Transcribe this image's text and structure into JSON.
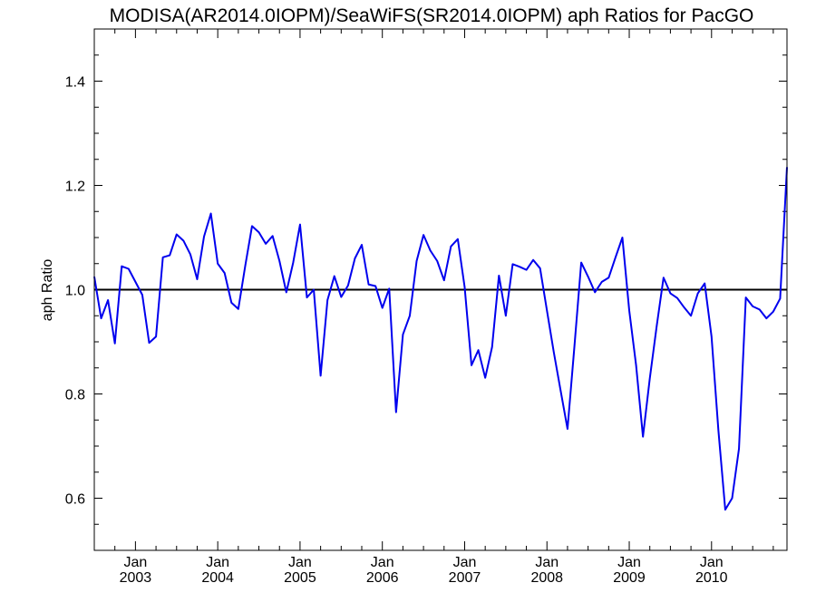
{
  "chart_data": {
    "type": "line",
    "title": "MODISA(AR2014.0IOPM)/SeaWiFS(SR2014.0IOPM)  aph Ratios for PacGO",
    "xlabel": "",
    "ylabel": "aph Ratio",
    "x_start": "2002-07",
    "x_end": "2010-12",
    "ylim": [
      0.5,
      1.5
    ],
    "y_ticks": [
      0.6,
      0.8,
      1.0,
      1.2,
      1.4
    ],
    "y_tick_labels": [
      "0.6",
      "0.8",
      "1.0",
      "1.2",
      "1.4"
    ],
    "x_tick_month_labels": [
      "Jan",
      "Jan",
      "Jan",
      "Jan",
      "Jan",
      "Jan",
      "Jan",
      "Jan"
    ],
    "x_tick_year_labels": [
      "2003",
      "2004",
      "2005",
      "2006",
      "2007",
      "2008",
      "2009",
      "2010"
    ],
    "x_tick_dates": [
      "2003-01",
      "2004-01",
      "2005-01",
      "2006-01",
      "2007-01",
      "2008-01",
      "2009-01",
      "2010-01"
    ],
    "reference_line": 1.0,
    "grid": false,
    "series": [
      {
        "color": "#0000ee",
        "x": [
          "2002-07",
          "2002-08",
          "2002-09",
          "2002-10",
          "2002-11",
          "2002-12",
          "2003-01",
          "2003-02",
          "2003-03",
          "2003-04",
          "2003-05",
          "2003-06",
          "2003-07",
          "2003-08",
          "2003-09",
          "2003-10",
          "2003-11",
          "2003-12",
          "2004-01",
          "2004-02",
          "2004-03",
          "2004-04",
          "2004-05",
          "2004-06",
          "2004-07",
          "2004-08",
          "2004-09",
          "2004-10",
          "2004-11",
          "2004-12",
          "2005-01",
          "2005-02",
          "2005-03",
          "2005-04",
          "2005-05",
          "2005-06",
          "2005-07",
          "2005-08",
          "2005-09",
          "2005-10",
          "2005-11",
          "2005-12",
          "2006-01",
          "2006-02",
          "2006-03",
          "2006-04",
          "2006-05",
          "2006-06",
          "2006-07",
          "2006-08",
          "2006-09",
          "2006-10",
          "2006-11",
          "2006-12",
          "2007-01",
          "2007-02",
          "2007-03",
          "2007-04",
          "2007-05",
          "2007-06",
          "2007-07",
          "2007-08",
          "2007-09",
          "2007-10",
          "2007-11",
          "2007-12",
          "2008-01",
          "2008-02",
          "2008-03",
          "2008-04",
          "2008-05",
          "2008-06",
          "2008-07",
          "2008-08",
          "2008-09",
          "2008-10",
          "2008-11",
          "2008-12",
          "2009-01",
          "2009-02",
          "2009-03",
          "2009-04",
          "2009-05",
          "2009-06",
          "2009-07",
          "2009-08",
          "2009-09",
          "2009-10",
          "2009-11",
          "2009-12",
          "2010-01",
          "2010-02",
          "2010-03",
          "2010-04",
          "2010-05",
          "2010-06",
          "2010-07",
          "2010-08",
          "2010-09",
          "2010-10",
          "2010-11",
          "2010-12"
        ],
        "values": [
          1.025,
          0.945,
          0.98,
          0.897,
          1.045,
          1.04,
          1.015,
          0.99,
          0.898,
          0.91,
          1.062,
          1.066,
          1.106,
          1.094,
          1.068,
          1.02,
          1.102,
          1.146,
          1.05,
          1.032,
          0.975,
          0.963,
          1.045,
          1.122,
          1.11,
          1.088,
          1.103,
          1.055,
          0.995,
          1.052,
          1.125,
          0.985,
          1.0,
          0.835,
          0.98,
          1.026,
          0.986,
          1.008,
          1.06,
          1.086,
          1.01,
          1.007,
          0.965,
          1.002,
          0.765,
          0.914,
          0.95,
          1.055,
          1.105,
          1.075,
          1.055,
          1.018,
          1.083,
          1.097,
          1.005,
          0.855,
          0.884,
          0.831,
          0.89,
          1.027,
          0.95,
          1.049,
          1.044,
          1.038,
          1.057,
          1.041,
          0.96,
          0.88,
          0.806,
          0.733,
          0.89,
          1.052,
          1.025,
          0.995,
          1.015,
          1.023,
          1.062,
          1.1,
          0.96,
          0.855,
          0.718,
          0.83,
          0.93,
          1.023,
          0.993,
          0.984,
          0.966,
          0.95,
          0.993,
          1.012,
          0.91,
          0.73,
          0.578,
          0.6,
          0.695,
          0.985,
          0.968,
          0.962,
          0.945,
          0.958,
          0.983,
          1.235
        ]
      }
    ]
  }
}
